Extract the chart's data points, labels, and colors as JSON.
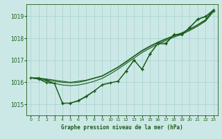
{
  "title": "Graphe pression niveau de la mer (hPa)",
  "background_color": "#cce8e6",
  "grid_color": "#aad4d2",
  "text_color": "#1a5c1a",
  "line_color": "#1a5c1a",
  "xlim": [
    -0.5,
    23.5
  ],
  "ylim": [
    1014.5,
    1019.55
  ],
  "yticks": [
    1015,
    1016,
    1017,
    1018,
    1019
  ],
  "xticks": [
    0,
    1,
    2,
    3,
    4,
    5,
    6,
    7,
    8,
    9,
    10,
    11,
    12,
    13,
    14,
    15,
    16,
    17,
    18,
    19,
    20,
    21,
    22,
    23
  ],
  "smooth_lines": [
    [
      1016.2,
      1016.2,
      1016.15,
      1016.1,
      1016.05,
      1016.0,
      1016.05,
      1016.1,
      1016.2,
      1016.3,
      1016.5,
      1016.7,
      1016.95,
      1017.2,
      1017.45,
      1017.65,
      1017.83,
      1017.98,
      1018.12,
      1018.25,
      1018.42,
      1018.62,
      1018.85,
      1019.3
    ],
    [
      1016.2,
      1016.18,
      1016.12,
      1016.05,
      1016.0,
      1015.98,
      1016.0,
      1016.08,
      1016.18,
      1016.28,
      1016.48,
      1016.68,
      1016.92,
      1017.18,
      1017.42,
      1017.62,
      1017.8,
      1017.95,
      1018.1,
      1018.22,
      1018.4,
      1018.6,
      1018.82,
      1019.27
    ],
    [
      1016.2,
      1016.15,
      1016.05,
      1015.95,
      1015.88,
      1015.85,
      1015.88,
      1015.95,
      1016.05,
      1016.18,
      1016.38,
      1016.6,
      1016.85,
      1017.1,
      1017.35,
      1017.55,
      1017.74,
      1017.9,
      1018.05,
      1018.18,
      1018.35,
      1018.55,
      1018.78,
      1019.22
    ]
  ],
  "marker_line": [
    1016.2,
    1016.2,
    1016.1,
    1015.95,
    1015.05,
    1015.05,
    1015.15,
    1015.35,
    1015.6,
    1015.9,
    1015.98,
    1016.05,
    1016.5,
    1017.0,
    1016.6,
    1017.3,
    1017.78,
    1017.78,
    1018.18,
    1018.18,
    1018.5,
    1018.88,
    1019.0,
    1019.3
  ],
  "marker_line2": [
    1016.2,
    1016.15,
    1015.98,
    1015.95,
    1015.06,
    1015.06,
    1015.18,
    1015.38,
    1015.62,
    1015.88,
    1015.97,
    1016.06,
    1016.52,
    1017.02,
    1016.58,
    1017.28,
    1017.75,
    1017.75,
    1018.15,
    1018.15,
    1018.48,
    1018.85,
    1018.98,
    1019.25
  ]
}
